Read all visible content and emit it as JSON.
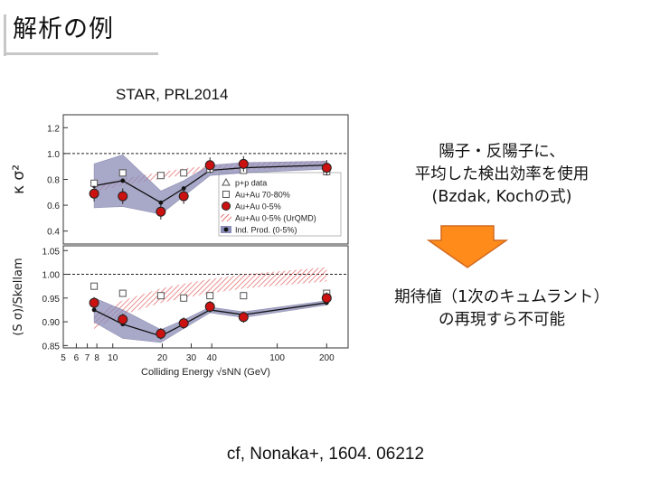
{
  "slide": {
    "title": "解析の例",
    "reference": "STAR, PRL2014",
    "note1_lines": [
      "陽子・反陽子に、",
      "平均した検出効率を使用",
      "(Bzdak, Kochの式)"
    ],
    "note2_lines": [
      "期待値（1次のキュムラント）",
      "の再現すら不可能"
    ],
    "citation": "cf, Nonaka+, 1604. 06212",
    "colors": {
      "arrow_fill": "#ff8c1a",
      "arrow_stroke": "#d2691e",
      "accent_red": "#cc1111",
      "band": "#8c8cb8"
    }
  },
  "chart_data": [
    {
      "type": "scatter",
      "title": "",
      "ylabel": "κ σ²",
      "ylim": [
        0.3,
        1.3
      ],
      "yticks": [
        "1.2",
        "1.0",
        "0.8",
        "0.6",
        "0.4"
      ],
      "reference_line": 1.0,
      "legend": [
        "p+p data",
        "Au+Au 70-80%",
        "Au+Au 0-5%",
        "Au+Au 0-5% (UrQMD)",
        "Ind. Prod. (0-5%)"
      ],
      "series": [
        {
          "name": "Au+Au 0-5%",
          "x": [
            7.7,
            11.5,
            19.6,
            27,
            39,
            62.4,
            200
          ],
          "y": [
            0.69,
            0.67,
            0.55,
            0.67,
            0.91,
            0.92,
            0.89
          ]
        },
        {
          "name": "Ind. Prod. (0-5%)",
          "x": [
            7.7,
            11.5,
            19.6,
            27,
            39,
            62.4,
            200
          ],
          "y": [
            0.75,
            0.79,
            0.62,
            0.73,
            0.87,
            0.89,
            0.91
          ]
        },
        {
          "name": "Au+Au 70-80%",
          "x": [
            7.7,
            11.5,
            19.6,
            27,
            39,
            62.4,
            200
          ],
          "y": [
            0.77,
            0.85,
            0.83,
            0.85,
            0.88,
            0.87,
            0.86
          ]
        }
      ]
    },
    {
      "type": "scatter",
      "ylabel": "(S σ)/Skellam",
      "xlabel": "Colliding Energy √sNN (GeV)",
      "ylim": [
        0.845,
        1.06
      ],
      "yticks": [
        "1.05",
        "1.00",
        "0.95",
        "0.90",
        "0.85"
      ],
      "xticks": [
        "5",
        "6",
        "7",
        "8",
        "10",
        "20",
        "30",
        "40",
        "100",
        "200"
      ],
      "reference_line": 1.0,
      "series": [
        {
          "name": "Au+Au 0-5%",
          "x": [
            7.7,
            11.5,
            19.6,
            27,
            39,
            62.4,
            200
          ],
          "y": [
            0.94,
            0.905,
            0.875,
            0.897,
            0.932,
            0.91,
            0.95
          ]
        },
        {
          "name": "Ind. Prod. (0-5%)",
          "x": [
            7.7,
            11.5,
            19.6,
            27,
            39,
            62.4,
            200
          ],
          "y": [
            0.925,
            0.895,
            0.87,
            0.895,
            0.925,
            0.915,
            0.94
          ]
        },
        {
          "name": "Au+Au 70-80%",
          "x": [
            7.7,
            11.5,
            19.6,
            27,
            39,
            62.4,
            200
          ],
          "y": [
            0.975,
            0.96,
            0.955,
            0.95,
            0.955,
            0.955,
            0.96
          ]
        }
      ]
    }
  ]
}
